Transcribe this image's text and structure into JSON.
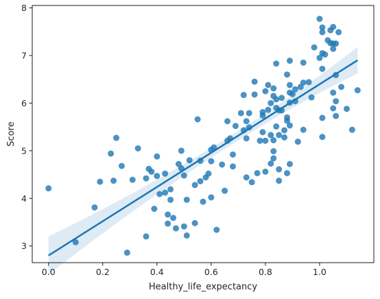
{
  "chart_data": {
    "type": "scatter",
    "title": "",
    "xlabel": "Healthy_life_expectancy",
    "ylabel": "Score",
    "xlim": [
      -0.06,
      1.2
    ],
    "ylim": [
      2.65,
      8.05
    ],
    "xticks": [
      0.0,
      0.2,
      0.4,
      0.6,
      0.8,
      1.0
    ],
    "yticks": [
      3,
      4,
      5,
      6,
      7,
      8
    ],
    "grid": false,
    "legend": "none",
    "point_color": "#1f77b4",
    "regression": {
      "x": [
        0.0,
        1.14
      ],
      "y": [
        2.8,
        6.9
      ],
      "ci_lower": [
        2.38,
        6.62
      ],
      "ci_upper": [
        3.18,
        7.18
      ],
      "ci_mid_width": 0.2,
      "color": "#1f77b4"
    },
    "points": [
      {
        "x": 0.0,
        "y": 4.21
      },
      {
        "x": 0.1,
        "y": 3.08
      },
      {
        "x": 0.17,
        "y": 3.81
      },
      {
        "x": 0.19,
        "y": 4.35
      },
      {
        "x": 0.23,
        "y": 4.94
      },
      {
        "x": 0.24,
        "y": 4.37
      },
      {
        "x": 0.25,
        "y": 5.27
      },
      {
        "x": 0.27,
        "y": 4.68
      },
      {
        "x": 0.29,
        "y": 2.86
      },
      {
        "x": 0.31,
        "y": 4.39
      },
      {
        "x": 0.33,
        "y": 5.05
      },
      {
        "x": 0.36,
        "y": 4.42
      },
      {
        "x": 0.36,
        "y": 3.2
      },
      {
        "x": 0.37,
        "y": 4.62
      },
      {
        "x": 0.38,
        "y": 4.56
      },
      {
        "x": 0.39,
        "y": 3.78
      },
      {
        "x": 0.4,
        "y": 4.47
      },
      {
        "x": 0.4,
        "y": 4.88
      },
      {
        "x": 0.41,
        "y": 4.09
      },
      {
        "x": 0.43,
        "y": 4.52
      },
      {
        "x": 0.43,
        "y": 4.12
      },
      {
        "x": 0.44,
        "y": 3.66
      },
      {
        "x": 0.44,
        "y": 3.47
      },
      {
        "x": 0.45,
        "y": 3.97
      },
      {
        "x": 0.45,
        "y": 4.19
      },
      {
        "x": 0.46,
        "y": 3.59
      },
      {
        "x": 0.47,
        "y": 3.37
      },
      {
        "x": 0.48,
        "y": 4.72
      },
      {
        "x": 0.49,
        "y": 4.63
      },
      {
        "x": 0.49,
        "y": 5.0
      },
      {
        "x": 0.5,
        "y": 4.48
      },
      {
        "x": 0.5,
        "y": 3.41
      },
      {
        "x": 0.51,
        "y": 3.22
      },
      {
        "x": 0.51,
        "y": 3.97
      },
      {
        "x": 0.52,
        "y": 4.8
      },
      {
        "x": 0.54,
        "y": 4.28
      },
      {
        "x": 0.54,
        "y": 3.48
      },
      {
        "x": 0.55,
        "y": 5.66
      },
      {
        "x": 0.56,
        "y": 4.79
      },
      {
        "x": 0.56,
        "y": 4.36
      },
      {
        "x": 0.57,
        "y": 3.93
      },
      {
        "x": 0.58,
        "y": 4.44
      },
      {
        "x": 0.59,
        "y": 4.52
      },
      {
        "x": 0.6,
        "y": 4.02
      },
      {
        "x": 0.6,
        "y": 4.78
      },
      {
        "x": 0.61,
        "y": 5.07
      },
      {
        "x": 0.62,
        "y": 3.34
      },
      {
        "x": 0.64,
        "y": 4.71
      },
      {
        "x": 0.65,
        "y": 4.16
      },
      {
        "x": 0.66,
        "y": 5.21
      },
      {
        "x": 0.66,
        "y": 5.62
      },
      {
        "x": 0.67,
        "y": 5.26
      },
      {
        "x": 0.68,
        "y": 4.67
      },
      {
        "x": 0.68,
        "y": 4.92
      },
      {
        "x": 0.69,
        "y": 5.52
      },
      {
        "x": 0.71,
        "y": 5.79
      },
      {
        "x": 0.72,
        "y": 6.17
      },
      {
        "x": 0.72,
        "y": 5.43
      },
      {
        "x": 0.73,
        "y": 4.44
      },
      {
        "x": 0.73,
        "y": 5.26
      },
      {
        "x": 0.73,
        "y": 5.62
      },
      {
        "x": 0.74,
        "y": 5.79
      },
      {
        "x": 0.74,
        "y": 5.49
      },
      {
        "x": 0.75,
        "y": 4.34
      },
      {
        "x": 0.76,
        "y": 6.45
      },
      {
        "x": 0.76,
        "y": 6.18
      },
      {
        "x": 0.77,
        "y": 4.53
      },
      {
        "x": 0.78,
        "y": 5.21
      },
      {
        "x": 0.79,
        "y": 5.81
      },
      {
        "x": 0.79,
        "y": 5.74
      },
      {
        "x": 0.79,
        "y": 5.39
      },
      {
        "x": 0.8,
        "y": 6.25
      },
      {
        "x": 0.8,
        "y": 5.21
      },
      {
        "x": 0.8,
        "y": 4.56
      },
      {
        "x": 0.81,
        "y": 6.38
      },
      {
        "x": 0.81,
        "y": 5.86
      },
      {
        "x": 0.82,
        "y": 6.0
      },
      {
        "x": 0.82,
        "y": 5.33
      },
      {
        "x": 0.82,
        "y": 4.73
      },
      {
        "x": 0.83,
        "y": 6.31
      },
      {
        "x": 0.83,
        "y": 6.15
      },
      {
        "x": 0.83,
        "y": 5.22
      },
      {
        "x": 0.83,
        "y": 4.99
      },
      {
        "x": 0.83,
        "y": 4.84
      },
      {
        "x": 0.84,
        "y": 6.83
      },
      {
        "x": 0.84,
        "y": 6.08
      },
      {
        "x": 0.84,
        "y": 5.9
      },
      {
        "x": 0.84,
        "y": 5.51
      },
      {
        "x": 0.85,
        "y": 5.33
      },
      {
        "x": 0.85,
        "y": 5.85
      },
      {
        "x": 0.85,
        "y": 4.61
      },
      {
        "x": 0.85,
        "y": 4.37
      },
      {
        "x": 0.86,
        "y": 6.11
      },
      {
        "x": 0.86,
        "y": 5.85
      },
      {
        "x": 0.87,
        "y": 5.28
      },
      {
        "x": 0.87,
        "y": 5.43
      },
      {
        "x": 0.88,
        "y": 6.6
      },
      {
        "x": 0.88,
        "y": 5.7
      },
      {
        "x": 0.88,
        "y": 5.63
      },
      {
        "x": 0.88,
        "y": 4.53
      },
      {
        "x": 0.89,
        "y": 6.89
      },
      {
        "x": 0.89,
        "y": 6.38
      },
      {
        "x": 0.89,
        "y": 6.22
      },
      {
        "x": 0.89,
        "y": 6.01
      },
      {
        "x": 0.89,
        "y": 5.53
      },
      {
        "x": 0.89,
        "y": 4.72
      },
      {
        "x": 0.9,
        "y": 6.19
      },
      {
        "x": 0.91,
        "y": 6.29
      },
      {
        "x": 0.91,
        "y": 6.04
      },
      {
        "x": 0.92,
        "y": 5.19
      },
      {
        "x": 0.93,
        "y": 6.34
      },
      {
        "x": 0.94,
        "y": 6.43
      },
      {
        "x": 0.94,
        "y": 6.85
      },
      {
        "x": 0.94,
        "y": 5.44
      },
      {
        "x": 0.96,
        "y": 6.44
      },
      {
        "x": 0.97,
        "y": 6.12
      },
      {
        "x": 0.98,
        "y": 7.17
      },
      {
        "x": 1.0,
        "y": 7.77
      },
      {
        "x": 1.0,
        "y": 6.95
      },
      {
        "x": 1.01,
        "y": 7.59
      },
      {
        "x": 1.01,
        "y": 7.49
      },
      {
        "x": 1.01,
        "y": 7.05
      },
      {
        "x": 1.01,
        "y": 6.72
      },
      {
        "x": 1.01,
        "y": 5.69
      },
      {
        "x": 1.01,
        "y": 5.29
      },
      {
        "x": 1.02,
        "y": 7.02
      },
      {
        "x": 1.03,
        "y": 7.32
      },
      {
        "x": 1.04,
        "y": 7.26
      },
      {
        "x": 1.04,
        "y": 7.53
      },
      {
        "x": 1.05,
        "y": 7.6
      },
      {
        "x": 1.05,
        "y": 7.25
      },
      {
        "x": 1.05,
        "y": 7.14
      },
      {
        "x": 1.05,
        "y": 6.22
      },
      {
        "x": 1.05,
        "y": 5.89
      },
      {
        "x": 1.06,
        "y": 7.25
      },
      {
        "x": 1.06,
        "y": 6.59
      },
      {
        "x": 1.06,
        "y": 6.04
      },
      {
        "x": 1.06,
        "y": 5.73
      },
      {
        "x": 1.07,
        "y": 7.49
      },
      {
        "x": 1.08,
        "y": 6.34
      },
      {
        "x": 1.1,
        "y": 5.88
      },
      {
        "x": 1.12,
        "y": 5.44
      },
      {
        "x": 1.14,
        "y": 6.27
      },
      {
        "x": 0.6,
        "y": 5.02
      }
    ]
  }
}
